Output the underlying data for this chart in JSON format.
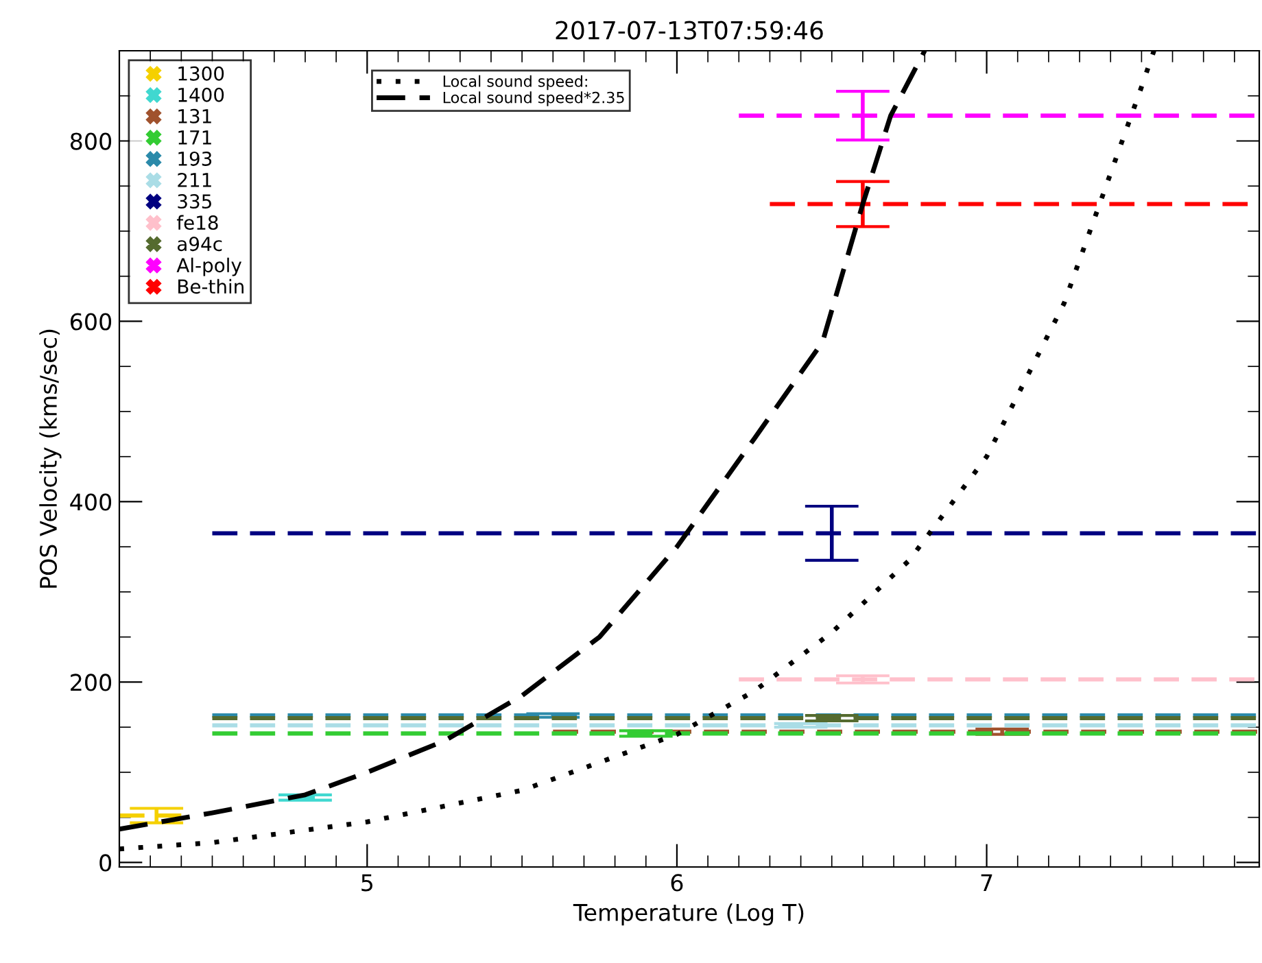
{
  "chart_data": {
    "type": "line",
    "title": "2017-07-13T07:59:46",
    "xlabel": "Temperature (Log T)",
    "ylabel": "POS Velocity (kms/sec)",
    "xlim": [
      4.2,
      7.88
    ],
    "xticks": [
      5,
      6,
      7
    ],
    "ylim": [
      -5,
      900
    ],
    "yticks": [
      0,
      200,
      400,
      600,
      800
    ],
    "grid": false,
    "legend": "top left",
    "marker": "none",
    "series": [
      {
        "name": "1300",
        "color": "#f5d000",
        "line_style": "dashed",
        "x": [
          4.2,
          4.32,
          4.4
        ],
        "values": [
          52,
          52,
          52
        ],
        "errors": [
          null,
          8,
          null
        ]
      },
      {
        "name": "1400",
        "color": "#40d8d0",
        "line_style": "dashed",
        "x": [
          4.75,
          4.8,
          4.85
        ],
        "values": [
          72,
          72,
          72
        ],
        "errors": [
          null,
          3,
          null
        ]
      },
      {
        "name": "131",
        "color": "#a0522d",
        "line_style": "dashed",
        "x": [
          5.6,
          7.05,
          7.88
        ],
        "values": [
          145,
          145,
          145
        ],
        "errors": [
          null,
          3,
          null
        ]
      },
      {
        "name": "171",
        "color": "#33cc33",
        "line_style": "dashed",
        "x": [
          4.5,
          5.9,
          7.88
        ],
        "values": [
          143,
          143,
          143
        ],
        "errors": [
          null,
          3,
          null
        ]
      },
      {
        "name": "193",
        "color": "#2b8aaa",
        "line_style": "dashed",
        "x": [
          4.5,
          5.6,
          7.88
        ],
        "values": [
          163,
          163,
          163
        ],
        "errors": [
          null,
          2,
          null
        ]
      },
      {
        "name": "211",
        "color": "#aadde6",
        "line_style": "dashed",
        "x": [
          4.5,
          6.4,
          7.88
        ],
        "values": [
          152,
          152,
          152
        ],
        "errors": [
          null,
          2,
          null
        ]
      },
      {
        "name": "335",
        "color": "#000080",
        "line_style": "dashed",
        "x": [
          4.5,
          6.5,
          7.88
        ],
        "values": [
          365,
          365,
          365
        ],
        "errors": [
          null,
          30,
          null
        ]
      },
      {
        "name": "fe18",
        "color": "#ffc0cb",
        "line_style": "dashed",
        "x": [
          6.2,
          6.6,
          7.88
        ],
        "values": [
          203,
          203,
          203
        ],
        "errors": [
          null,
          4,
          null
        ]
      },
      {
        "name": "a94c",
        "color": "#556b2f",
        "line_style": "dashed",
        "x": [
          4.5,
          6.5,
          7.88
        ],
        "values": [
          160,
          160,
          160
        ],
        "errors": [
          null,
          3,
          null
        ]
      },
      {
        "name": "Al-poly",
        "color": "#ff00ff",
        "line_style": "dashed",
        "x": [
          6.2,
          6.6,
          7.88
        ],
        "values": [
          828,
          828,
          828
        ],
        "errors": [
          null,
          27,
          null
        ]
      },
      {
        "name": "Be-thin",
        "color": "#ff0000",
        "line_style": "dashed",
        "x": [
          6.3,
          6.6,
          7.88
        ],
        "values": [
          730,
          730,
          730
        ],
        "errors": [
          null,
          25,
          null
        ]
      },
      {
        "name": "Local sound speed:",
        "color": "#000000",
        "line_style": "dotted",
        "x": [
          4.2,
          4.5,
          5.0,
          5.5,
          6.0,
          6.25,
          6.5,
          6.75,
          7.0,
          7.25,
          7.5,
          7.54
        ],
        "values": [
          15,
          22,
          45,
          80,
          142,
          190,
          255,
          335,
          450,
          620,
          860,
          900
        ]
      },
      {
        "name": "Local sound speed*2.35",
        "color": "#000000",
        "line_style": "dashed",
        "x": [
          4.2,
          4.5,
          4.8,
          5.0,
          5.25,
          5.5,
          5.75,
          6.0,
          6.25,
          6.47,
          6.6,
          6.69,
          6.8
        ],
        "values": [
          37,
          55,
          75,
          100,
          135,
          185,
          250,
          350,
          470,
          577,
          730,
          828,
          900
        ]
      }
    ]
  }
}
